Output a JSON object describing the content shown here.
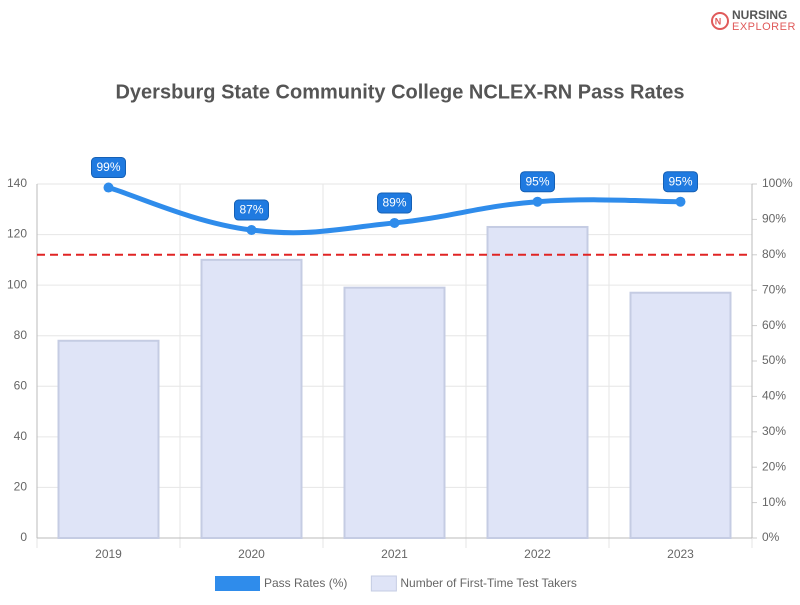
{
  "logo": {
    "line1": "NURSING",
    "line2": "EXPLORER"
  },
  "chart_data": {
    "type": "bar-line",
    "title": "Dyersburg State Community College NCLEX-RN Pass Rates",
    "categories": [
      "2019",
      "2020",
      "2021",
      "2022",
      "2023"
    ],
    "series": [
      {
        "name": "Pass Rates (%)",
        "type": "line",
        "axis": "y2",
        "color": "#2f8ceb",
        "values": [
          99,
          87,
          89,
          95,
          95
        ],
        "value_labels": [
          "99%",
          "87%",
          "89%",
          "95%",
          "95%"
        ]
      },
      {
        "name": "Number of First-Time Test Takers",
        "type": "bar",
        "axis": "y",
        "color": "#dfe4f7",
        "values": [
          78,
          110,
          99,
          123,
          97
        ]
      }
    ],
    "reference_line": {
      "axis": "y2",
      "value": 80,
      "color": "#e02424"
    },
    "ylim": [
      0,
      140
    ],
    "yticks": [
      0,
      20,
      40,
      60,
      80,
      100,
      120,
      140
    ],
    "y2lim": [
      0,
      100
    ],
    "y2ticks": [
      {
        "value": 0,
        "label": "0%"
      },
      {
        "value": 10,
        "label": "10%"
      },
      {
        "value": 20,
        "label": "20%"
      },
      {
        "value": 30,
        "label": "30%"
      },
      {
        "value": 40,
        "label": "40%"
      },
      {
        "value": 50,
        "label": "50%"
      },
      {
        "value": 60,
        "label": "60%"
      },
      {
        "value": 70,
        "label": "70%"
      },
      {
        "value": 80,
        "label": "80%"
      },
      {
        "value": 90,
        "label": "90%"
      },
      {
        "value": 100,
        "label": "100%"
      }
    ],
    "grid": true,
    "legend": "bottom"
  }
}
